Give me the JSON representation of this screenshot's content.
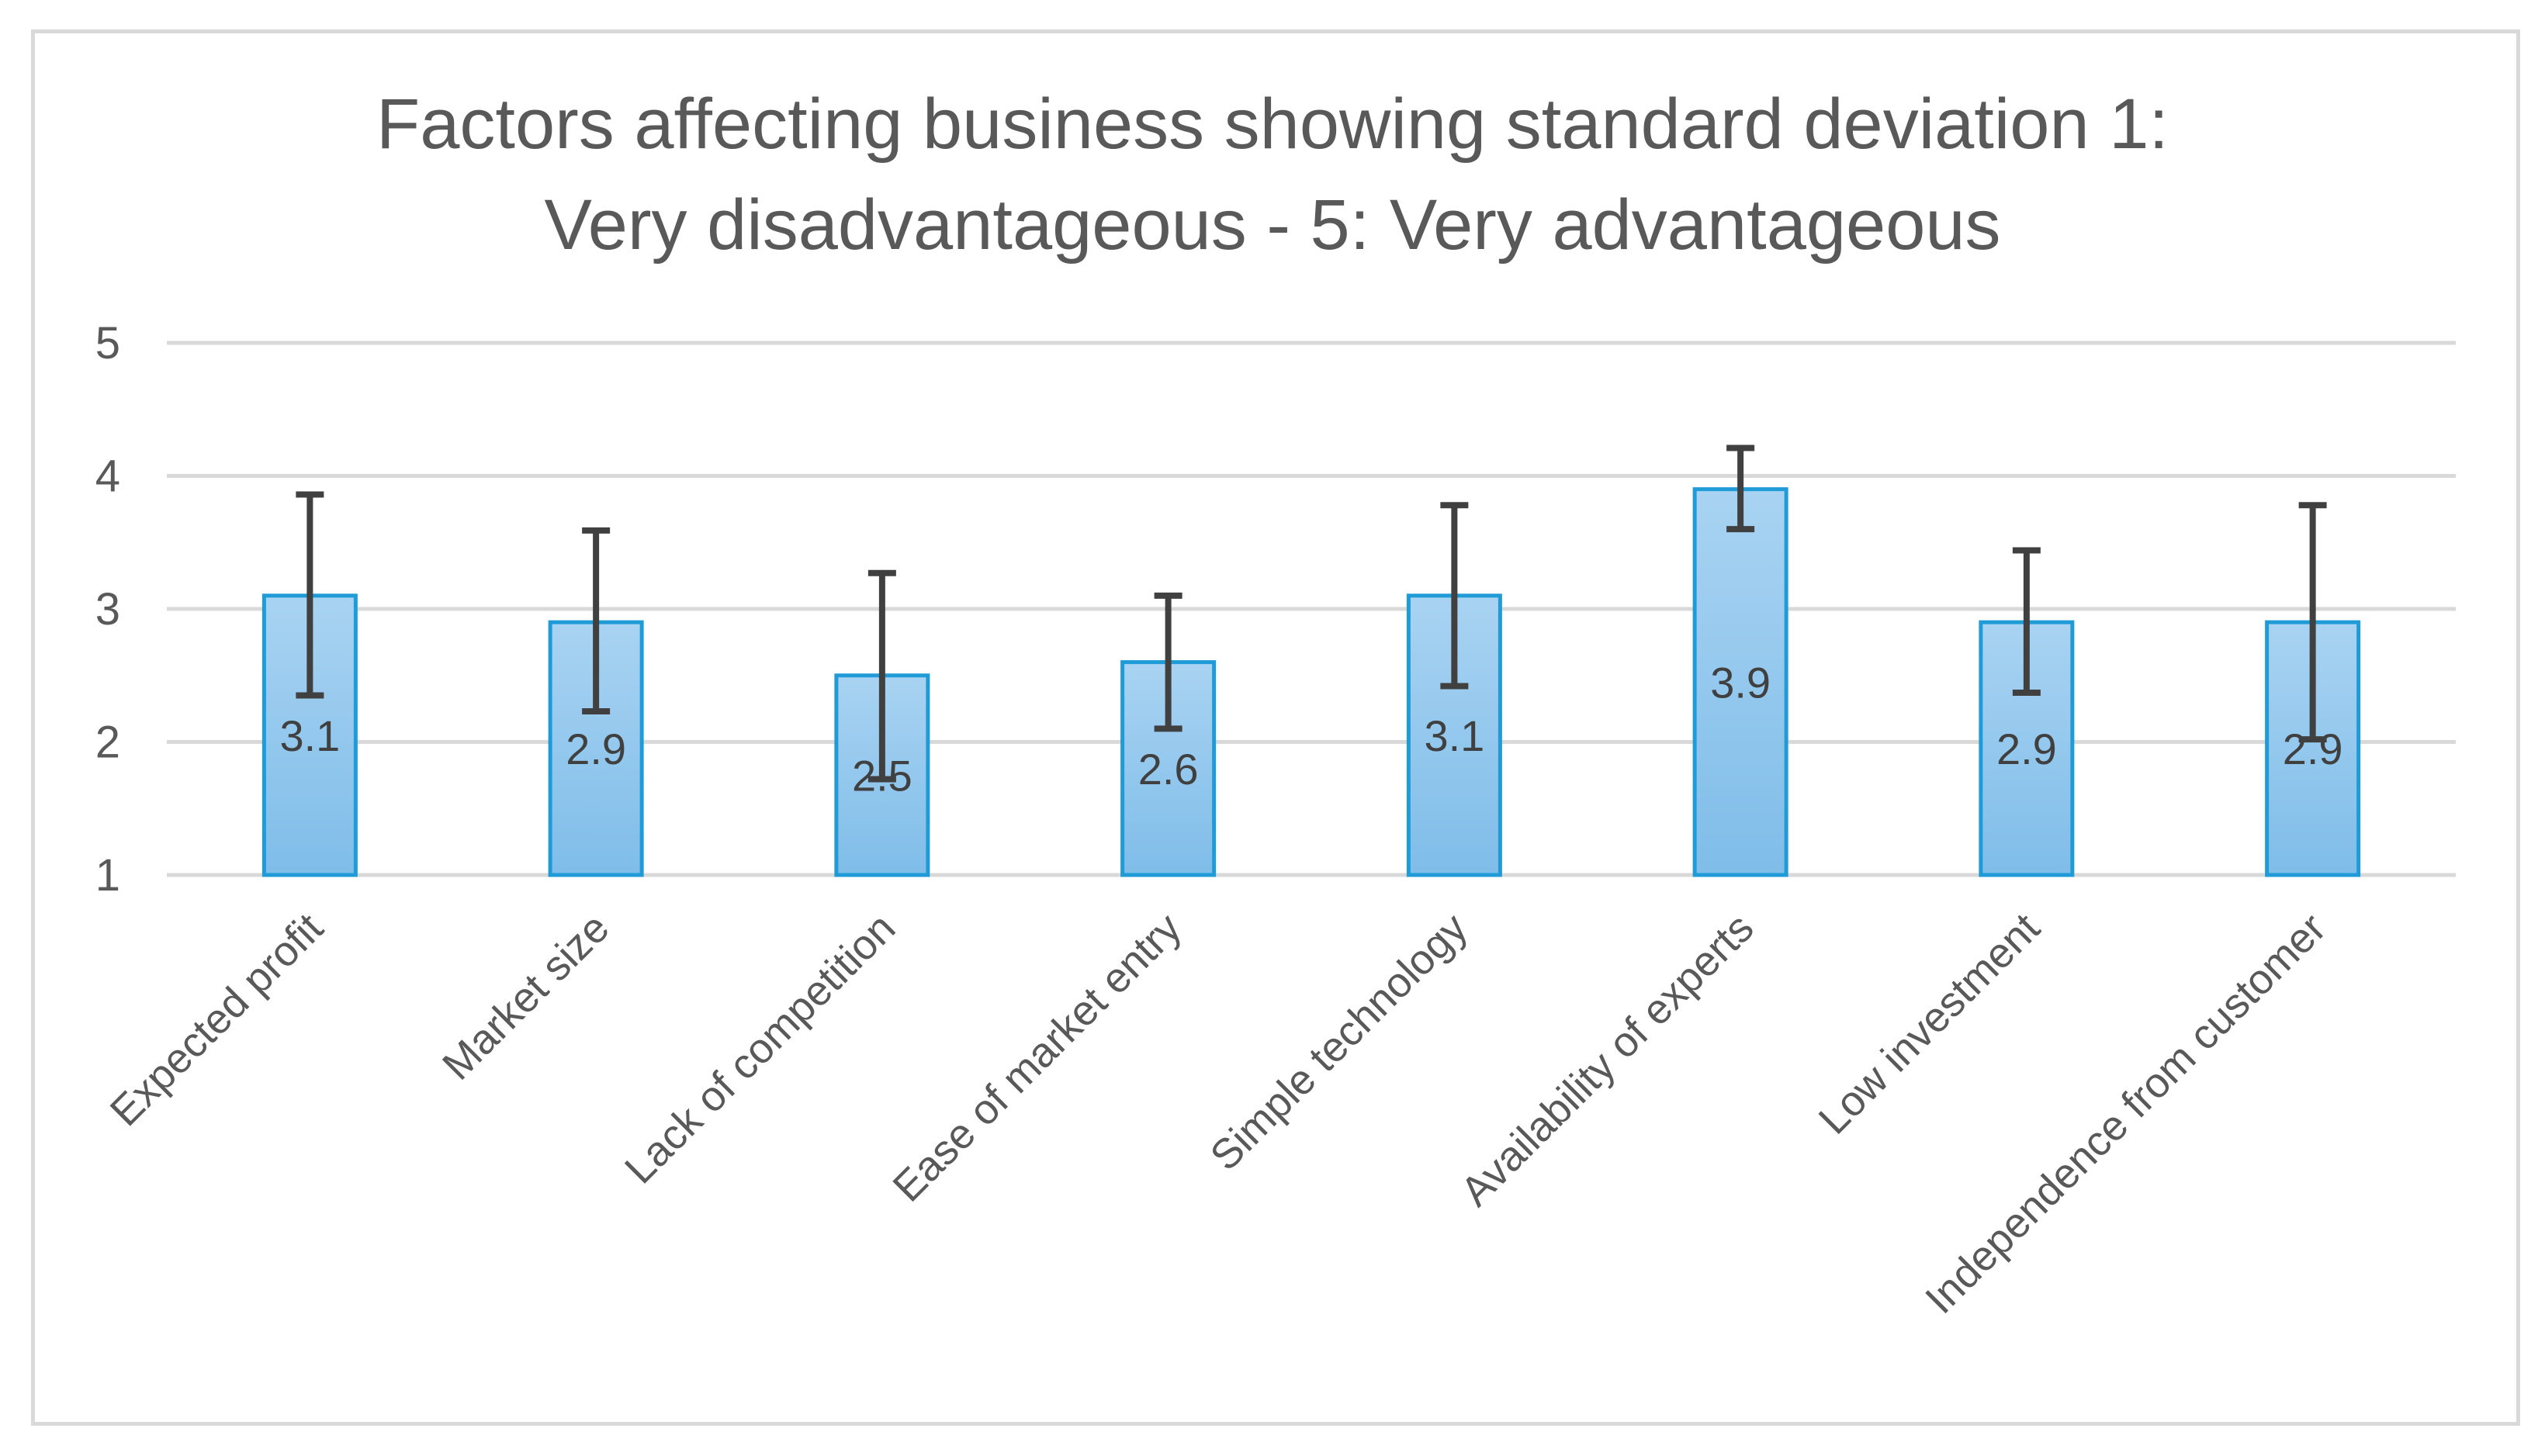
{
  "chart_data": {
    "type": "bar",
    "title_line1": "Factors affecting business showing standard deviation 1:",
    "title_line2": "Very disadvantageous - 5: Very advantageous",
    "categories": [
      "Expected profit",
      "Market size",
      "Lack of competition",
      "Ease of market entry",
      "Simple technology",
      "Availability of experts",
      "Low investment",
      "Independence from customer"
    ],
    "values": [
      3.1,
      2.9,
      2.5,
      2.6,
      3.1,
      3.9,
      2.9,
      2.9
    ],
    "value_labels": [
      "3.1",
      "2.9",
      "2.5",
      "2.6",
      "3.1",
      "3.9",
      "2.9",
      "2.9"
    ],
    "error_low": [
      2.35,
      2.23,
      1.72,
      2.1,
      2.42,
      3.6,
      2.37,
      2.02
    ],
    "error_high": [
      3.86,
      3.59,
      3.27,
      3.1,
      3.78,
      4.21,
      3.44,
      3.78
    ],
    "yticks": [
      1,
      2,
      3,
      4,
      5
    ],
    "ytick_labels": [
      "1",
      "2",
      "3",
      "4",
      "5"
    ],
    "ylim": [
      1,
      5
    ],
    "xlabel": "",
    "ylabel": "",
    "grid": true,
    "legend": "none",
    "colors": {
      "bar_fill_top": "#a9d3f2",
      "bar_fill_bottom": "#7fbde9",
      "bar_stroke": "#1f9bd7",
      "error_bar": "#404040",
      "gridline": "#d9d9d9",
      "text": "#595959",
      "data_label": "#404040"
    }
  }
}
